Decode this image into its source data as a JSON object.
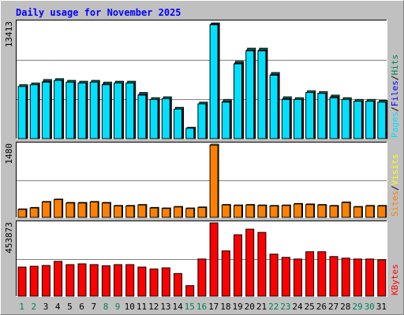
{
  "chart_data": {
    "type": "bar",
    "title": "Daily usage for November 2025",
    "categories": [
      "1",
      "2",
      "3",
      "4",
      "5",
      "6",
      "7",
      "8",
      "9",
      "10",
      "11",
      "12",
      "13",
      "14",
      "15",
      "16",
      "17",
      "18",
      "19",
      "20",
      "21",
      "22",
      "23",
      "24",
      "25",
      "26",
      "27",
      "28",
      "29",
      "30",
      "31"
    ],
    "weekend_days": [
      "1",
      "2",
      "8",
      "9",
      "15",
      "16",
      "22",
      "23",
      "29",
      "30"
    ],
    "colors": {
      "background": "#c0c0c0",
      "plot_background": "#ffffff",
      "title": "#0000ff",
      "gridline": "#808080",
      "hits": "#00805c",
      "files": "#0000ff",
      "pages": "#00e0ff",
      "visits": "#ffff00",
      "sites": "#ff8000",
      "kbytes": "#ff0000",
      "weekday_label": "#000000",
      "weekend_label": "#00805c"
    },
    "panels": [
      {
        "id": "hits_files_pages",
        "max_label": "13413",
        "ylim": [
          0,
          13413
        ],
        "legend": [
          {
            "label": "Pages",
            "color": "#00e0ff"
          },
          {
            "label": "/",
            "color": "#000000"
          },
          {
            "label": "Files",
            "color": "#0000ff"
          },
          {
            "label": "/",
            "color": "#000000"
          },
          {
            "label": "Hits",
            "color": "#00805c"
          }
        ],
        "series": [
          {
            "name": "Hits",
            "values": [
              6200,
              6400,
              6800,
              6900,
              6700,
              6600,
              6700,
              6500,
              6600,
              6600,
              5300,
              4700,
              4800,
              3600,
              1300,
              4200,
              13300,
              4500,
              8900,
              10400,
              10400,
              7600,
              4800,
              4700,
              5500,
              5400,
              5000,
              4700,
              4500,
              4500,
              4400
            ]
          },
          {
            "name": "Files",
            "values": [
              6000,
              6200,
              6600,
              6700,
              6500,
              6400,
              6500,
              6300,
              6400,
              6400,
              5100,
              4500,
              4600,
              3400,
              1200,
              4000,
              13200,
              4300,
              8700,
              10200,
              10200,
              7400,
              4600,
              4500,
              5300,
              5200,
              4800,
              4500,
              4300,
              4300,
              4200
            ]
          },
          {
            "name": "Pages",
            "values": [
              6000,
              6200,
              6500,
              6700,
              6500,
              6400,
              6500,
              6200,
              6400,
              6400,
              5000,
              4500,
              4600,
              3400,
              1200,
              4000,
              13100,
              4200,
              8600,
              10100,
              10100,
              7300,
              4500,
              4500,
              5300,
              5200,
              4700,
              4500,
              4300,
              4300,
              4200
            ]
          }
        ]
      },
      {
        "id": "visits_sites",
        "max_label": "1480",
        "ylim": [
          0,
          1480
        ],
        "legend": [
          {
            "label": "Sites",
            "color": "#ff8000"
          },
          {
            "label": "/",
            "color": "#000000"
          },
          {
            "label": "Visits",
            "color": "#ffff00"
          }
        ],
        "series": [
          {
            "name": "Visits",
            "values": [
              170,
              200,
              320,
              370,
              300,
              300,
              320,
              300,
              240,
              240,
              260,
              200,
              190,
              220,
              190,
              210,
              1480,
              260,
              250,
              260,
              250,
              240,
              250,
              280,
              270,
              260,
              240,
              310,
              220,
              240,
              240
            ]
          },
          {
            "name": "Sites",
            "values": [
              160,
              190,
              310,
              360,
              290,
              290,
              310,
              290,
              230,
              230,
              250,
              190,
              180,
              210,
              180,
              200,
              1460,
              250,
              240,
              250,
              240,
              230,
              240,
              270,
              260,
              250,
              230,
              300,
              210,
              230,
              230
            ]
          }
        ]
      },
      {
        "id": "kbytes",
        "max_label": "453873",
        "ylim": [
          0,
          453873
        ],
        "legend": [
          {
            "label": "KBytes",
            "color": "#ff0000"
          }
        ],
        "series": [
          {
            "name": "KBytes",
            "values": [
              180000,
              185000,
              190000,
              215000,
              195000,
              200000,
              195000,
              188000,
              195000,
              195000,
              180000,
              168000,
              175000,
              140000,
              65000,
              230000,
              453873,
              280000,
              380000,
              415000,
              395000,
              260000,
              240000,
              230000,
              275000,
              275000,
              245000,
              235000,
              230000,
              230000,
              225000
            ]
          }
        ]
      }
    ]
  }
}
